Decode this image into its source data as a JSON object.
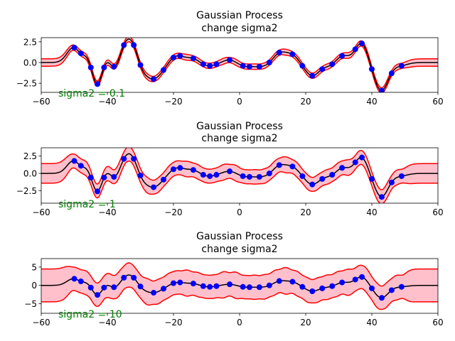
{
  "figure": {
    "background": "#ffffff"
  },
  "chart_data": [
    {
      "type": "line",
      "title": "Gaussian Process",
      "subtitle": "change sigma2",
      "annotation": "sigma2 = 0.1",
      "xlim": [
        -60,
        60
      ],
      "ylim": [
        -3.6,
        3.0
      ],
      "xticks": [
        -60,
        -40,
        -20,
        0,
        20,
        40,
        60
      ],
      "yticks": [
        -2.5,
        0.0,
        2.5
      ],
      "ytick_labels": [
        "−2.5",
        "0.0",
        "2.5"
      ],
      "xtick_labels": [
        "−60",
        "−40",
        "−20",
        "0",
        "20",
        "40",
        "60"
      ],
      "sigma2": 0.1,
      "band_color": "#ffc0cb",
      "bound_color": "#ff0000",
      "mean_color": "#000000",
      "point_color": "#0000ff",
      "annotation_color": "#008000",
      "legend": "none",
      "grid": false
    },
    {
      "type": "line",
      "title": "Gaussian Process",
      "subtitle": "change sigma2",
      "annotation": "sigma2 = 1",
      "xlim": [
        -60,
        60
      ],
      "ylim": [
        -4.3,
        3.7
      ],
      "xticks": [
        -60,
        -40,
        -20,
        0,
        20,
        40,
        60
      ],
      "yticks": [
        -2.5,
        0.0,
        2.5
      ],
      "ytick_labels": [
        "−2.5",
        "0.0",
        "2.5"
      ],
      "xtick_labels": [
        "−60",
        "−40",
        "−20",
        "0",
        "20",
        "40",
        "60"
      ],
      "sigma2": 1,
      "band_color": "#ffc0cb",
      "bound_color": "#ff0000",
      "mean_color": "#000000",
      "point_color": "#0000ff",
      "annotation_color": "#008000",
      "legend": "none",
      "grid": false
    },
    {
      "type": "line",
      "title": "Gaussian Process",
      "subtitle": "change sigma2",
      "annotation": "sigma2 = 10",
      "xlim": [
        -60,
        60
      ],
      "ylim": [
        -7.6,
        7.3
      ],
      "xticks": [
        -60,
        -40,
        -20,
        0,
        20,
        40,
        60
      ],
      "yticks": [
        -5,
        0,
        5
      ],
      "ytick_labels": [
        "−5",
        "0",
        "5"
      ],
      "xtick_labels": [
        "−60",
        "−40",
        "−20",
        "0",
        "20",
        "40",
        "60"
      ],
      "sigma2": 10,
      "band_color": "#ffc0cb",
      "bound_color": "#ff0000",
      "mean_color": "#000000",
      "point_color": "#0000ff",
      "annotation_color": "#008000",
      "legend": "none",
      "grid": false
    }
  ],
  "observations": {
    "x": [
      -50,
      -48,
      -45,
      -43,
      -41,
      -38,
      -35,
      -32,
      -30,
      -26,
      -23,
      -20,
      -18,
      -14,
      -11,
      -9,
      -7,
      -3,
      1,
      3,
      6,
      9,
      12,
      16,
      19,
      22,
      25,
      28,
      31,
      35,
      37,
      40,
      43,
      46,
      49
    ],
    "y": [
      1.8,
      1.1,
      -0.6,
      -2.6,
      -0.6,
      -0.5,
      2.1,
      2.1,
      -0.3,
      -2.0,
      -0.9,
      0.6,
      0.8,
      0.5,
      -0.2,
      -0.4,
      -0.2,
      0.3,
      -0.4,
      -0.5,
      -0.5,
      0.0,
      1.2,
      1.0,
      -0.4,
      -1.6,
      -0.8,
      -0.2,
      0.8,
      1.6,
      2.3,
      -0.8,
      -3.4,
      -1.3,
      -0.4
    ]
  }
}
